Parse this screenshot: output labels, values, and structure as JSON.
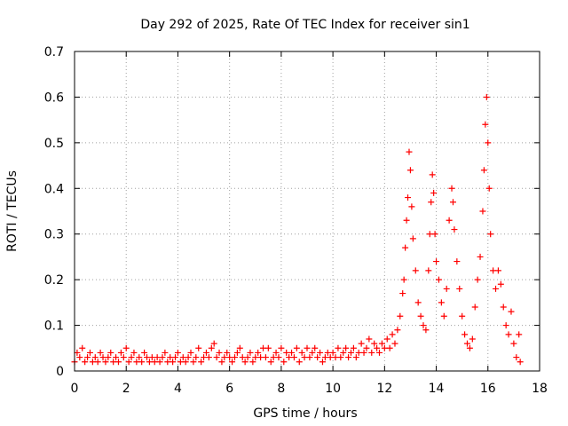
{
  "chart_data": {
    "type": "scatter",
    "title": "Day 292 of 2025, Rate Of TEC Index for receiver sin1",
    "xlabel": "GPS time / hours",
    "ylabel": "ROTI / TECUs",
    "xlim": [
      0,
      18
    ],
    "ylim": [
      0,
      0.7
    ],
    "xticks": [
      0,
      2,
      4,
      6,
      8,
      10,
      12,
      14,
      16,
      18
    ],
    "yticks": [
      0,
      0.1,
      0.2,
      0.3,
      0.4,
      0.5,
      0.6,
      0.7
    ],
    "xtick_labels": [
      "0",
      "2",
      "4",
      "6",
      "8",
      "10",
      "12",
      "14",
      "16",
      "18"
    ],
    "ytick_labels": [
      "0",
      "0.1",
      "0.2",
      "0.3",
      "0.4",
      "0.5",
      "0.6",
      "0.7"
    ],
    "grid": true,
    "marker": "+",
    "series": [
      {
        "name": "ROTI",
        "color": "#ff0000",
        "points": [
          [
            0.0,
            0.02
          ],
          [
            0.1,
            0.04
          ],
          [
            0.2,
            0.03
          ],
          [
            0.3,
            0.05
          ],
          [
            0.4,
            0.02
          ],
          [
            0.5,
            0.03
          ],
          [
            0.6,
            0.04
          ],
          [
            0.7,
            0.02
          ],
          [
            0.8,
            0.03
          ],
          [
            0.9,
            0.02
          ],
          [
            1.0,
            0.04
          ],
          [
            1.1,
            0.03
          ],
          [
            1.2,
            0.02
          ],
          [
            1.3,
            0.03
          ],
          [
            1.4,
            0.04
          ],
          [
            1.5,
            0.02
          ],
          [
            1.6,
            0.03
          ],
          [
            1.7,
            0.02
          ],
          [
            1.8,
            0.04
          ],
          [
            1.9,
            0.03
          ],
          [
            2.0,
            0.05
          ],
          [
            2.1,
            0.02
          ],
          [
            2.2,
            0.03
          ],
          [
            2.3,
            0.04
          ],
          [
            2.4,
            0.02
          ],
          [
            2.5,
            0.03
          ],
          [
            2.6,
            0.02
          ],
          [
            2.7,
            0.04
          ],
          [
            2.8,
            0.03
          ],
          [
            2.9,
            0.02
          ],
          [
            3.0,
            0.03
          ],
          [
            3.1,
            0.02
          ],
          [
            3.2,
            0.03
          ],
          [
            3.3,
            0.02
          ],
          [
            3.4,
            0.03
          ],
          [
            3.5,
            0.04
          ],
          [
            3.6,
            0.02
          ],
          [
            3.7,
            0.03
          ],
          [
            3.8,
            0.02
          ],
          [
            3.9,
            0.03
          ],
          [
            4.0,
            0.04
          ],
          [
            4.1,
            0.02
          ],
          [
            4.2,
            0.03
          ],
          [
            4.3,
            0.02
          ],
          [
            4.4,
            0.03
          ],
          [
            4.5,
            0.04
          ],
          [
            4.6,
            0.02
          ],
          [
            4.7,
            0.03
          ],
          [
            4.8,
            0.05
          ],
          [
            4.9,
            0.02
          ],
          [
            5.0,
            0.03
          ],
          [
            5.1,
            0.04
          ],
          [
            5.2,
            0.03
          ],
          [
            5.3,
            0.05
          ],
          [
            5.4,
            0.06
          ],
          [
            5.5,
            0.03
          ],
          [
            5.6,
            0.04
          ],
          [
            5.7,
            0.02
          ],
          [
            5.8,
            0.03
          ],
          [
            5.9,
            0.04
          ],
          [
            6.0,
            0.03
          ],
          [
            6.1,
            0.02
          ],
          [
            6.2,
            0.03
          ],
          [
            6.3,
            0.04
          ],
          [
            6.4,
            0.05
          ],
          [
            6.5,
            0.03
          ],
          [
            6.6,
            0.02
          ],
          [
            6.7,
            0.03
          ],
          [
            6.8,
            0.04
          ],
          [
            6.9,
            0.02
          ],
          [
            7.0,
            0.03
          ],
          [
            7.1,
            0.04
          ],
          [
            7.2,
            0.03
          ],
          [
            7.3,
            0.05
          ],
          [
            7.4,
            0.03
          ],
          [
            7.5,
            0.05
          ],
          [
            7.6,
            0.02
          ],
          [
            7.7,
            0.03
          ],
          [
            7.8,
            0.04
          ],
          [
            7.9,
            0.03
          ],
          [
            8.0,
            0.05
          ],
          [
            8.1,
            0.02
          ],
          [
            8.2,
            0.04
          ],
          [
            8.3,
            0.03
          ],
          [
            8.4,
            0.04
          ],
          [
            8.5,
            0.03
          ],
          [
            8.6,
            0.05
          ],
          [
            8.7,
            0.02
          ],
          [
            8.8,
            0.04
          ],
          [
            8.9,
            0.03
          ],
          [
            9.0,
            0.05
          ],
          [
            9.1,
            0.03
          ],
          [
            9.2,
            0.04
          ],
          [
            9.3,
            0.05
          ],
          [
            9.4,
            0.03
          ],
          [
            9.5,
            0.04
          ],
          [
            9.6,
            0.02
          ],
          [
            9.7,
            0.03
          ],
          [
            9.8,
            0.04
          ],
          [
            9.9,
            0.03
          ],
          [
            10.0,
            0.04
          ],
          [
            10.1,
            0.03
          ],
          [
            10.2,
            0.05
          ],
          [
            10.3,
            0.03
          ],
          [
            10.4,
            0.04
          ],
          [
            10.5,
            0.05
          ],
          [
            10.6,
            0.03
          ],
          [
            10.7,
            0.04
          ],
          [
            10.8,
            0.05
          ],
          [
            10.9,
            0.03
          ],
          [
            11.0,
            0.04
          ],
          [
            11.1,
            0.06
          ],
          [
            11.2,
            0.04
          ],
          [
            11.3,
            0.05
          ],
          [
            11.4,
            0.07
          ],
          [
            11.5,
            0.04
          ],
          [
            11.6,
            0.06
          ],
          [
            11.7,
            0.05
          ],
          [
            11.8,
            0.04
          ],
          [
            11.9,
            0.06
          ],
          [
            12.0,
            0.05
          ],
          [
            12.1,
            0.07
          ],
          [
            12.2,
            0.05
          ],
          [
            12.3,
            0.08
          ],
          [
            12.4,
            0.06
          ],
          [
            12.5,
            0.09
          ],
          [
            12.6,
            0.12
          ],
          [
            12.7,
            0.17
          ],
          [
            12.75,
            0.2
          ],
          [
            12.8,
            0.27
          ],
          [
            12.85,
            0.33
          ],
          [
            12.9,
            0.38
          ],
          [
            12.95,
            0.48
          ],
          [
            13.0,
            0.44
          ],
          [
            13.05,
            0.36
          ],
          [
            13.1,
            0.29
          ],
          [
            13.2,
            0.22
          ],
          [
            13.3,
            0.15
          ],
          [
            13.4,
            0.12
          ],
          [
            13.5,
            0.1
          ],
          [
            13.6,
            0.09
          ],
          [
            13.7,
            0.22
          ],
          [
            13.75,
            0.3
          ],
          [
            13.8,
            0.37
          ],
          [
            13.85,
            0.43
          ],
          [
            13.9,
            0.39
          ],
          [
            13.95,
            0.3
          ],
          [
            14.0,
            0.24
          ],
          [
            14.1,
            0.2
          ],
          [
            14.2,
            0.15
          ],
          [
            14.3,
            0.12
          ],
          [
            14.4,
            0.18
          ],
          [
            14.5,
            0.33
          ],
          [
            14.6,
            0.4
          ],
          [
            14.65,
            0.37
          ],
          [
            14.7,
            0.31
          ],
          [
            14.8,
            0.24
          ],
          [
            14.9,
            0.18
          ],
          [
            15.0,
            0.12
          ],
          [
            15.1,
            0.08
          ],
          [
            15.2,
            0.06
          ],
          [
            15.3,
            0.05
          ],
          [
            15.4,
            0.07
          ],
          [
            15.5,
            0.14
          ],
          [
            15.6,
            0.2
          ],
          [
            15.7,
            0.25
          ],
          [
            15.8,
            0.35
          ],
          [
            15.85,
            0.44
          ],
          [
            15.9,
            0.54
          ],
          [
            15.95,
            0.6
          ],
          [
            16.0,
            0.5
          ],
          [
            16.05,
            0.4
          ],
          [
            16.1,
            0.3
          ],
          [
            16.2,
            0.22
          ],
          [
            16.3,
            0.18
          ],
          [
            16.4,
            0.22
          ],
          [
            16.5,
            0.19
          ],
          [
            16.6,
            0.14
          ],
          [
            16.7,
            0.1
          ],
          [
            16.8,
            0.08
          ],
          [
            16.9,
            0.13
          ],
          [
            17.0,
            0.06
          ],
          [
            17.1,
            0.03
          ],
          [
            17.2,
            0.08
          ],
          [
            17.25,
            0.02
          ]
        ]
      }
    ]
  }
}
